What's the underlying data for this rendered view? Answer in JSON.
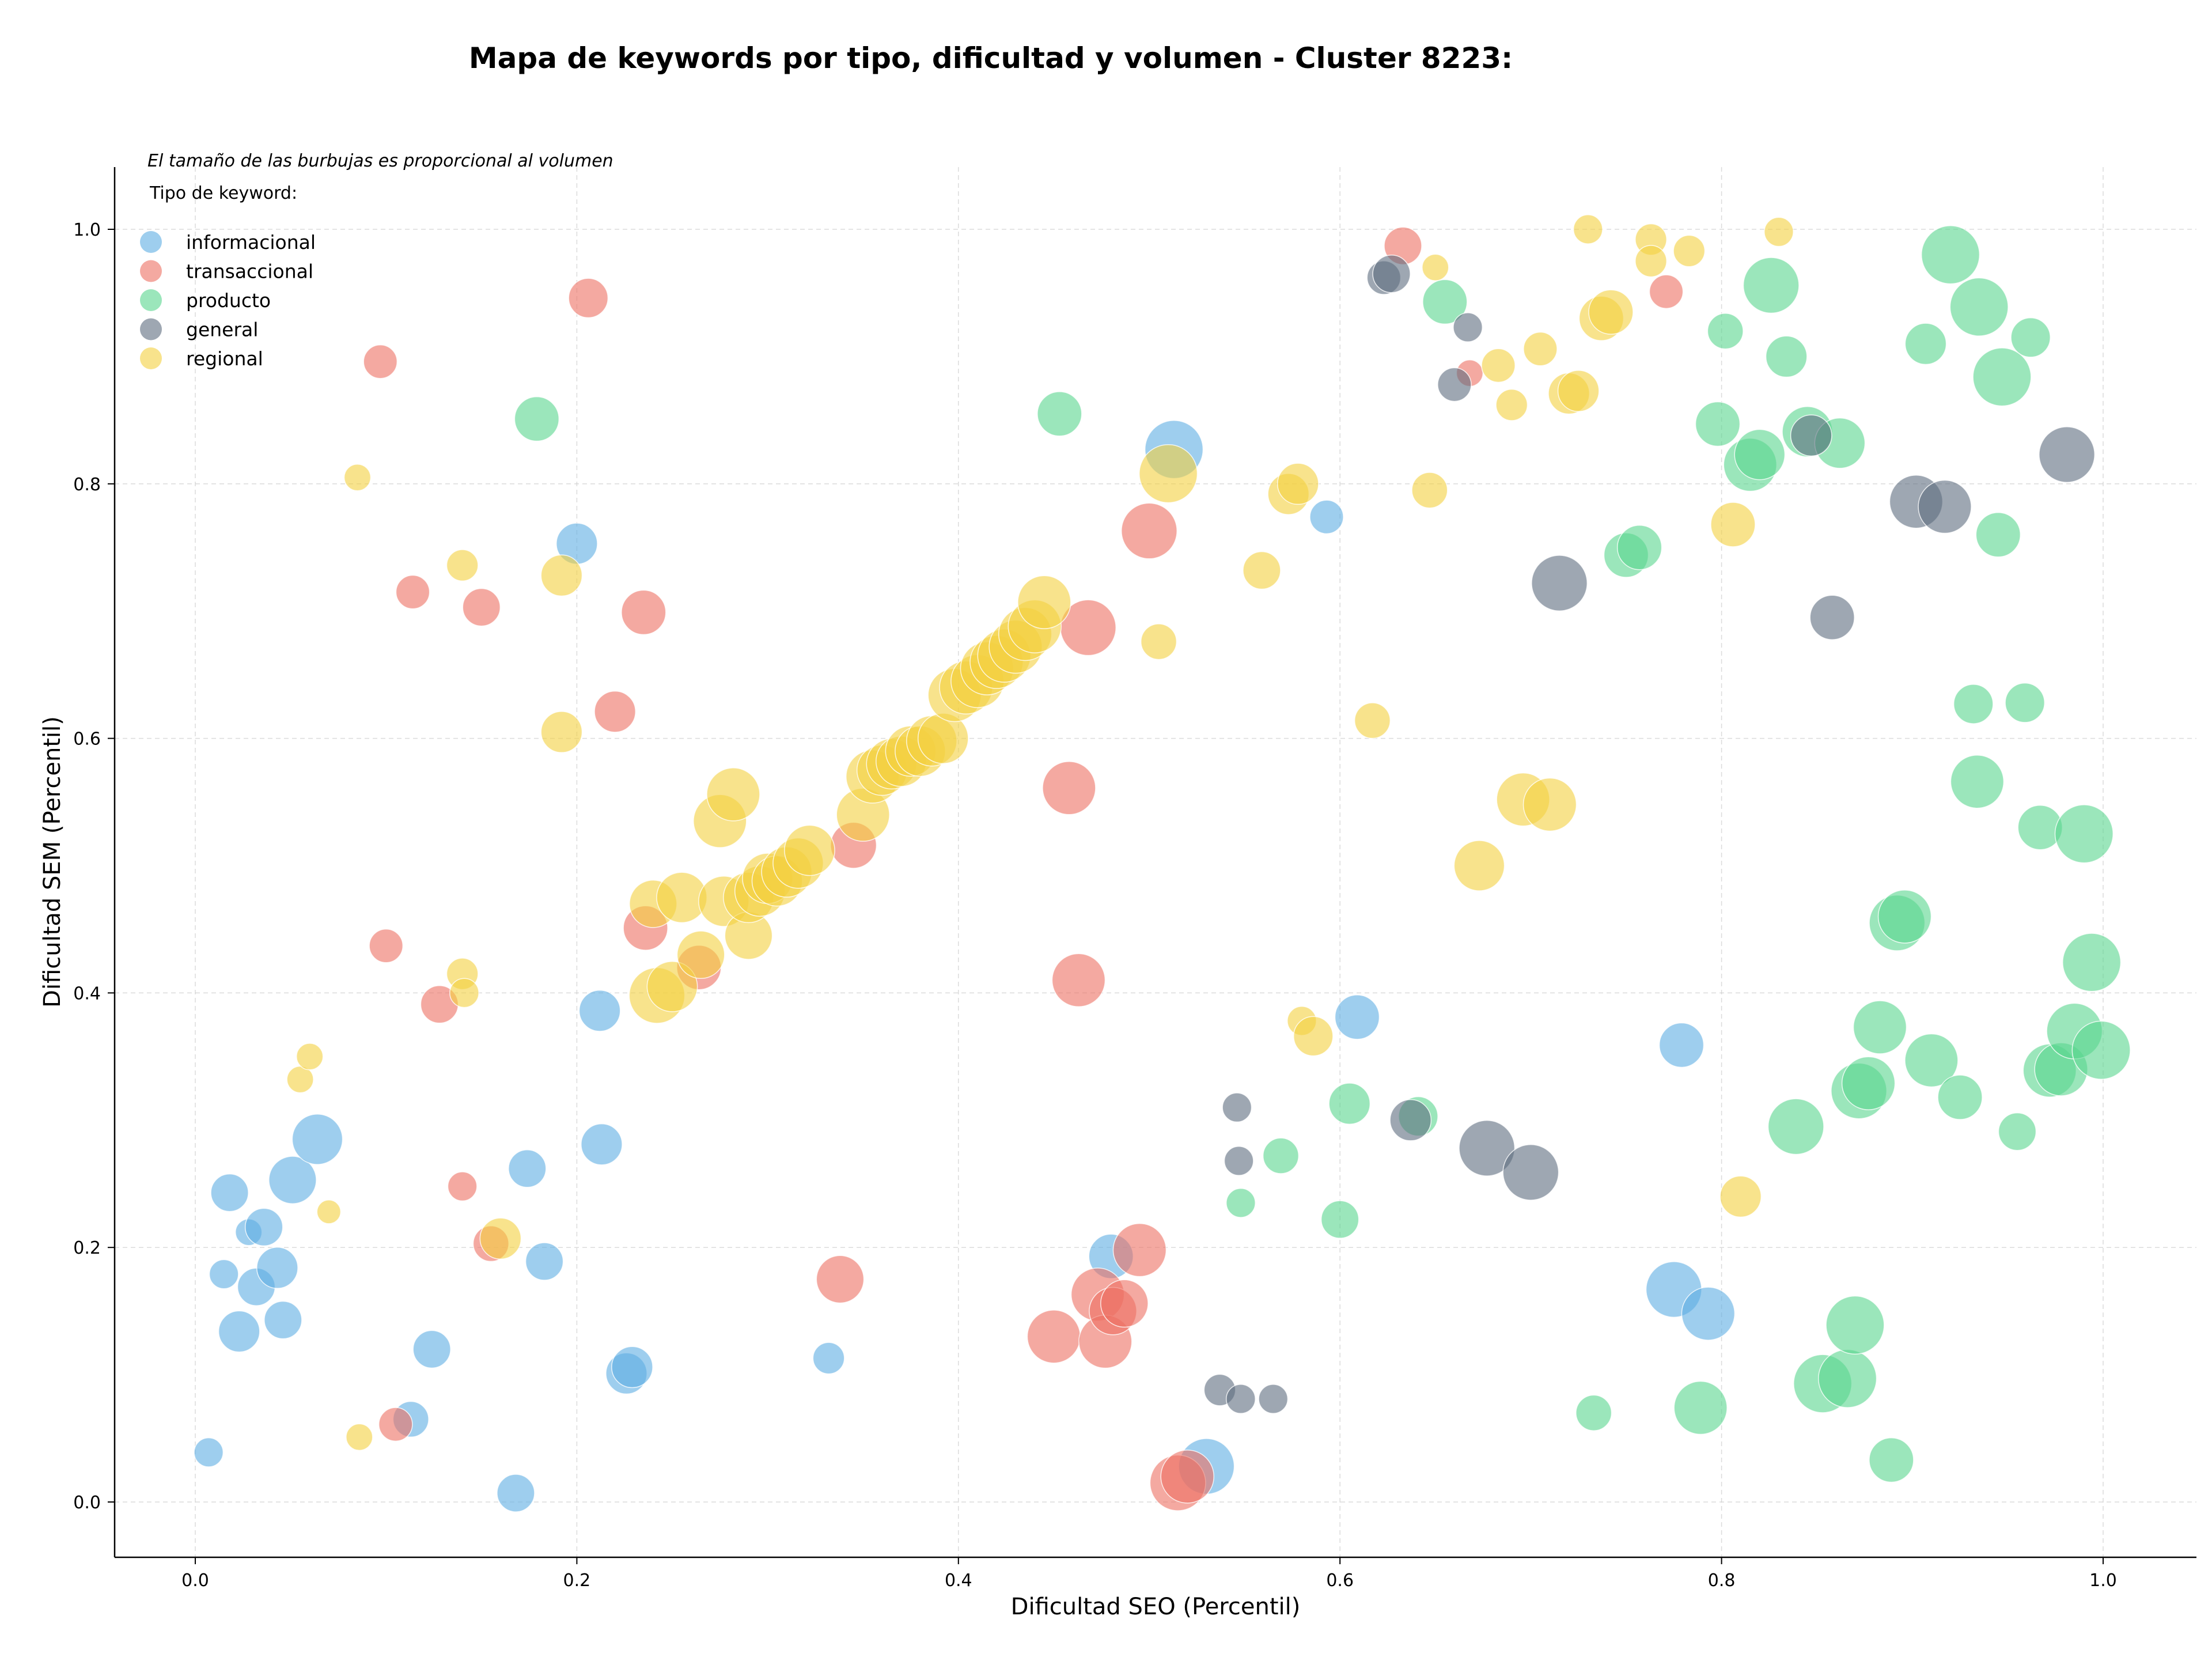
{
  "chart_data": {
    "type": "scatter",
    "title": "Mapa de keywords por tipo, dificultad y volumen - Cluster 8223:",
    "xlabel": "Dificultad SEO (Percentil)",
    "ylabel": "Dificultad SEM (Percentil)",
    "xlim": [
      -0.04,
      1.05
    ],
    "ylim": [
      -0.04,
      1.05
    ],
    "xticks": [
      0.0,
      0.2,
      0.4,
      0.6,
      0.8,
      1.0
    ],
    "yticks": [
      0.0,
      0.2,
      0.4,
      0.6,
      0.8,
      1.0
    ],
    "xtick_labels": [
      "0.0",
      "0.2",
      "0.4",
      "0.6",
      "0.8",
      "1.0"
    ],
    "ytick_labels": [
      "0.0",
      "0.2",
      "0.4",
      "0.6",
      "0.8",
      "1.0"
    ],
    "grid": true,
    "note": "El tamaño de las burbujas es proporcional al volumen",
    "legend_title": "Tipo de keyword:",
    "legend_position": "top-left",
    "series": [
      {
        "name": "informacional",
        "color": "#5dade2",
        "points": [
          [
            0.007,
            0.039,
            0.3
          ],
          [
            0.015,
            0.179,
            0.3
          ],
          [
            0.018,
            0.243,
            0.5
          ],
          [
            0.023,
            0.134,
            0.6
          ],
          [
            0.028,
            0.212,
            0.25
          ],
          [
            0.032,
            0.169,
            0.5
          ],
          [
            0.036,
            0.216,
            0.5
          ],
          [
            0.043,
            0.184,
            0.6
          ],
          [
            0.046,
            0.143,
            0.5
          ],
          [
            0.051,
            0.253,
            0.8
          ],
          [
            0.064,
            0.285,
            0.9
          ],
          [
            0.113,
            0.065,
            0.45
          ],
          [
            0.124,
            0.12,
            0.5
          ],
          [
            0.168,
            0.007,
            0.5
          ],
          [
            0.174,
            0.262,
            0.5
          ],
          [
            0.183,
            0.189,
            0.5
          ],
          [
            0.2,
            0.753,
            0.6
          ],
          [
            0.212,
            0.386,
            0.6
          ],
          [
            0.213,
            0.281,
            0.6
          ],
          [
            0.226,
            0.101,
            0.6
          ],
          [
            0.229,
            0.106,
            0.6
          ],
          [
            0.332,
            0.113,
            0.35
          ],
          [
            0.48,
            0.193,
            0.7
          ],
          [
            0.513,
            0.827,
            1.2
          ],
          [
            0.53,
            0.028,
            1.1
          ],
          [
            0.593,
            0.774,
            0.4
          ],
          [
            0.609,
            0.381,
            0.7
          ],
          [
            0.775,
            0.167,
            1.1
          ],
          [
            0.779,
            0.359,
            0.7
          ],
          [
            0.793,
            0.148,
            1.0
          ]
        ]
      },
      {
        "name": "transaccional",
        "color": "#ec7063",
        "points": [
          [
            0.097,
            0.896,
            0.4
          ],
          [
            0.1,
            0.437,
            0.4
          ],
          [
            0.105,
            0.061,
            0.4
          ],
          [
            0.114,
            0.715,
            0.4
          ],
          [
            0.128,
            0.391,
            0.5
          ],
          [
            0.14,
            0.248,
            0.3
          ],
          [
            0.15,
            0.703,
            0.5
          ],
          [
            0.155,
            0.203,
            0.45
          ],
          [
            0.206,
            0.946,
            0.55
          ],
          [
            0.22,
            0.621,
            0.6
          ],
          [
            0.235,
            0.699,
            0.7
          ],
          [
            0.236,
            0.451,
            0.7
          ],
          [
            0.264,
            0.42,
            0.7
          ],
          [
            0.338,
            0.175,
            0.8
          ],
          [
            0.345,
            0.516,
            0.75
          ],
          [
            0.45,
            0.13,
            1.0
          ],
          [
            0.458,
            0.561,
            1.0
          ],
          [
            0.463,
            0.41,
            1.0
          ],
          [
            0.468,
            0.687,
            1.1
          ],
          [
            0.473,
            0.163,
            1.0
          ],
          [
            0.477,
            0.126,
            1.0
          ],
          [
            0.481,
            0.15,
            0.8
          ],
          [
            0.487,
            0.156,
            0.8
          ],
          [
            0.495,
            0.198,
            1.0
          ],
          [
            0.5,
            0.763,
            1.1
          ],
          [
            0.515,
            0.015,
            1.1
          ],
          [
            0.52,
            0.02,
            1.0
          ],
          [
            0.633,
            0.987,
            0.5
          ],
          [
            0.668,
            0.887,
            0.25
          ],
          [
            0.771,
            0.951,
            0.4
          ]
        ]
      },
      {
        "name": "producto",
        "color": "#58d68d",
        "points": [
          [
            0.179,
            0.851,
            0.7
          ],
          [
            0.453,
            0.855,
            0.7
          ],
          [
            0.548,
            0.235,
            0.3
          ],
          [
            0.569,
            0.272,
            0.45
          ],
          [
            0.6,
            0.222,
            0.5
          ],
          [
            0.605,
            0.313,
            0.6
          ],
          [
            0.641,
            0.303,
            0.55
          ],
          [
            0.655,
            0.943,
            0.7
          ],
          [
            0.733,
            0.07,
            0.45
          ],
          [
            0.75,
            0.744,
            0.7
          ],
          [
            0.757,
            0.75,
            0.7
          ],
          [
            0.789,
            0.074,
            1.0
          ],
          [
            0.798,
            0.847,
            0.7
          ],
          [
            0.802,
            0.92,
            0.45
          ],
          [
            0.815,
            0.815,
            1.0
          ],
          [
            0.82,
            0.823,
            0.9
          ],
          [
            0.826,
            0.956,
            1.1
          ],
          [
            0.834,
            0.9,
            0.6
          ],
          [
            0.839,
            0.295,
            1.1
          ],
          [
            0.845,
            0.841,
            0.9
          ],
          [
            0.853,
            0.093,
            1.2
          ],
          [
            0.862,
            0.832,
            0.9
          ],
          [
            0.866,
            0.097,
            1.2
          ],
          [
            0.87,
            0.139,
            1.2
          ],
          [
            0.872,
            0.323,
            1.1
          ],
          [
            0.877,
            0.329,
            1.0
          ],
          [
            0.883,
            0.373,
            1.0
          ],
          [
            0.889,
            0.033,
            0.7
          ],
          [
            0.892,
            0.455,
            1.1
          ],
          [
            0.896,
            0.46,
            1.0
          ],
          [
            0.907,
            0.91,
            0.6
          ],
          [
            0.91,
            0.347,
            1.0
          ],
          [
            0.92,
            0.98,
            1.2
          ],
          [
            0.925,
            0.318,
            0.7
          ],
          [
            0.932,
            0.627,
            0.55
          ],
          [
            0.934,
            0.566,
            1.0
          ],
          [
            0.935,
            0.939,
            1.2
          ],
          [
            0.945,
            0.76,
            0.7
          ],
          [
            0.947,
            0.884,
            1.2
          ],
          [
            0.955,
            0.291,
            0.5
          ],
          [
            0.959,
            0.628,
            0.55
          ],
          [
            0.962,
            0.915,
            0.55
          ],
          [
            0.967,
            0.53,
            0.7
          ],
          [
            0.972,
            0.339,
            1.0
          ],
          [
            0.978,
            0.34,
            1.0
          ],
          [
            0.985,
            0.37,
            1.1
          ],
          [
            0.99,
            0.525,
            1.2
          ],
          [
            0.994,
            0.424,
            1.2
          ],
          [
            0.999,
            0.355,
            1.2
          ]
        ]
      },
      {
        "name": "general",
        "color": "#5d6d7e",
        "points": [
          [
            0.537,
            0.088,
            0.35
          ],
          [
            0.546,
            0.31,
            0.3
          ],
          [
            0.547,
            0.268,
            0.3
          ],
          [
            0.548,
            0.081,
            0.3
          ],
          [
            0.565,
            0.081,
            0.3
          ],
          [
            0.623,
            0.962,
            0.4
          ],
          [
            0.627,
            0.965,
            0.5
          ],
          [
            0.637,
            0.3,
            0.6
          ],
          [
            0.66,
            0.878,
            0.4
          ],
          [
            0.667,
            0.923,
            0.3
          ],
          [
            0.677,
            0.278,
            1.1
          ],
          [
            0.7,
            0.259,
            1.1
          ],
          [
            0.715,
            0.722,
            1.1
          ],
          [
            0.847,
            0.838,
            0.6
          ],
          [
            0.858,
            0.695,
            0.7
          ],
          [
            0.902,
            0.786,
            1.0
          ],
          [
            0.917,
            0.782,
            1.0
          ],
          [
            0.981,
            0.823,
            1.1
          ]
        ]
      },
      {
        "name": "regional",
        "color": "#f4d03f",
        "points": [
          [
            0.055,
            0.332,
            0.25
          ],
          [
            0.06,
            0.35,
            0.25
          ],
          [
            0.07,
            0.228,
            0.2
          ],
          [
            0.085,
            0.805,
            0.25
          ],
          [
            0.086,
            0.051,
            0.25
          ],
          [
            0.14,
            0.736,
            0.35
          ],
          [
            0.14,
            0.415,
            0.35
          ],
          [
            0.141,
            0.4,
            0.3
          ],
          [
            0.16,
            0.207,
            0.6
          ],
          [
            0.192,
            0.728,
            0.6
          ],
          [
            0.192,
            0.605,
            0.6
          ],
          [
            0.24,
            0.47,
            0.8
          ],
          [
            0.242,
            0.398,
            1.1
          ],
          [
            0.25,
            0.405,
            0.9
          ],
          [
            0.255,
            0.475,
            0.9
          ],
          [
            0.265,
            0.43,
            0.8
          ],
          [
            0.275,
            0.535,
            1.0
          ],
          [
            0.277,
            0.472,
            0.9
          ],
          [
            0.282,
            0.556,
            1.0
          ],
          [
            0.29,
            0.445,
            0.8
          ],
          [
            0.29,
            0.475,
            0.9
          ],
          [
            0.296,
            0.48,
            0.9
          ],
          [
            0.3,
            0.49,
            0.9
          ],
          [
            0.305,
            0.488,
            0.9
          ],
          [
            0.31,
            0.495,
            0.9
          ],
          [
            0.316,
            0.502,
            0.9
          ],
          [
            0.322,
            0.512,
            0.9
          ],
          [
            0.35,
            0.54,
            1.0
          ],
          [
            0.355,
            0.57,
            1.0
          ],
          [
            0.36,
            0.575,
            0.9
          ],
          [
            0.365,
            0.58,
            0.9
          ],
          [
            0.37,
            0.582,
            0.9
          ],
          [
            0.375,
            0.59,
            0.9
          ],
          [
            0.38,
            0.59,
            0.9
          ],
          [
            0.386,
            0.598,
            0.9
          ],
          [
            0.392,
            0.6,
            0.9
          ],
          [
            0.398,
            0.634,
            1.0
          ],
          [
            0.404,
            0.64,
            1.0
          ],
          [
            0.41,
            0.645,
            1.0
          ],
          [
            0.415,
            0.655,
            1.0
          ],
          [
            0.42,
            0.66,
            1.0
          ],
          [
            0.424,
            0.665,
            1.0
          ],
          [
            0.43,
            0.672,
            1.0
          ],
          [
            0.435,
            0.682,
            1.0
          ],
          [
            0.44,
            0.688,
            1.0
          ],
          [
            0.445,
            0.707,
            1.0
          ],
          [
            0.505,
            0.676,
            0.45
          ],
          [
            0.51,
            0.808,
            1.2
          ],
          [
            0.559,
            0.732,
            0.5
          ],
          [
            0.573,
            0.792,
            0.6
          ],
          [
            0.578,
            0.8,
            0.6
          ],
          [
            0.58,
            0.378,
            0.3
          ],
          [
            0.586,
            0.366,
            0.55
          ],
          [
            0.617,
            0.614,
            0.45
          ],
          [
            0.647,
            0.795,
            0.45
          ],
          [
            0.65,
            0.97,
            0.25
          ],
          [
            0.673,
            0.5,
            0.9
          ],
          [
            0.683,
            0.893,
            0.4
          ],
          [
            0.69,
            0.862,
            0.35
          ],
          [
            0.696,
            0.552,
            1.0
          ],
          [
            0.705,
            0.906,
            0.4
          ],
          [
            0.71,
            0.548,
            1.0
          ],
          [
            0.72,
            0.871,
            0.6
          ],
          [
            0.725,
            0.873,
            0.6
          ],
          [
            0.73,
            1.0,
            0.3
          ],
          [
            0.737,
            0.93,
            0.7
          ],
          [
            0.742,
            0.935,
            0.7
          ],
          [
            0.763,
            0.992,
            0.35
          ],
          [
            0.763,
            0.975,
            0.35
          ],
          [
            0.783,
            0.983,
            0.35
          ],
          [
            0.806,
            0.768,
            0.7
          ],
          [
            0.81,
            0.24,
            0.6
          ],
          [
            0.83,
            0.998,
            0.3
          ]
        ]
      }
    ]
  }
}
